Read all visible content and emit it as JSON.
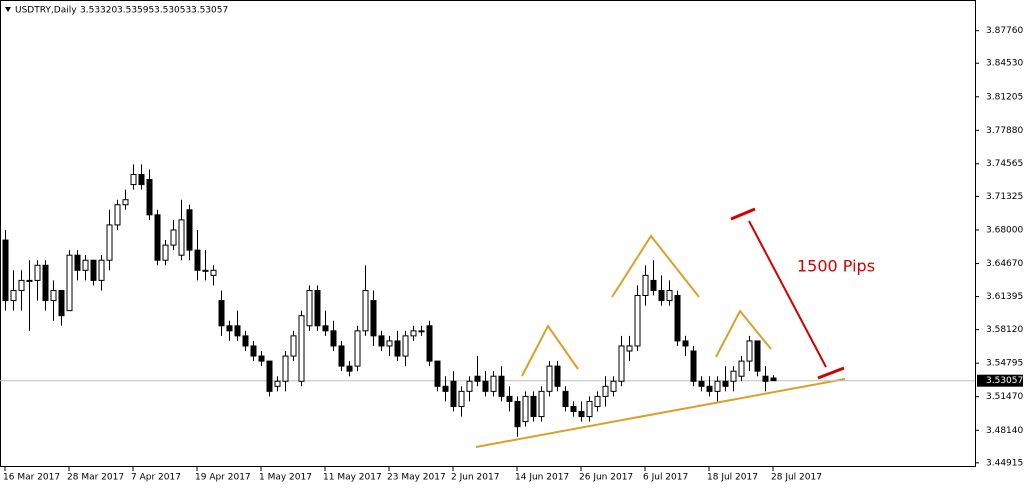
{
  "chart_data": {
    "type": "candlestick",
    "title": "USDTRY,Daily",
    "info": [
      "3.53320",
      "3.53595",
      "3.53053",
      "3.53057"
    ],
    "annotation": "1500 Pips",
    "categories": [
      "16 Mar 2017",
      null,
      null,
      null,
      null,
      null,
      null,
      null,
      "28 Mar 2017",
      null,
      null,
      null,
      null,
      null,
      null,
      null,
      "7 Apr 2017",
      null,
      null,
      null,
      null,
      null,
      null,
      null,
      "19 Apr 2017",
      null,
      null,
      null,
      null,
      null,
      null,
      null,
      "1 May 2017",
      null,
      null,
      null,
      null,
      null,
      null,
      null,
      "11 May 2017",
      null,
      null,
      null,
      null,
      null,
      null,
      null,
      "23 May 2017",
      null,
      null,
      null,
      null,
      null,
      null,
      null,
      "2 Jun 2017",
      null,
      null,
      null,
      null,
      null,
      null,
      null,
      "14 Jun 2017",
      null,
      null,
      null,
      null,
      null,
      null,
      null,
      "26 Jun 2017",
      null,
      null,
      null,
      null,
      null,
      null,
      null,
      "6 Jul 2017",
      null,
      null,
      null,
      null,
      null,
      null,
      null,
      "18 Jul 2017",
      null,
      null,
      null,
      null,
      null,
      null,
      null,
      "28 Jul 2017"
    ],
    "open": [
      3.67,
      3.61,
      3.62,
      3.63,
      3.63,
      3.645,
      3.61,
      3.62,
      3.6,
      3.655,
      3.64,
      3.65,
      3.63,
      3.65,
      3.685,
      3.705,
      3.725,
      3.735,
      3.73,
      3.695,
      3.65,
      3.665,
      3.655,
      3.7,
      3.66,
      3.64,
      3.635,
      3.61,
      3.585,
      3.585,
      3.575,
      3.565,
      3.555,
      3.55,
      3.525,
      3.53,
      3.555,
      3.53,
      3.585,
      3.62,
      3.585,
      3.58,
      3.565,
      3.545,
      3.545,
      3.58,
      3.61,
      3.575,
      3.565,
      3.57,
      3.555,
      3.575,
      3.58,
      3.585,
      3.55,
      3.525,
      3.53,
      3.505,
      3.52,
      3.535,
      3.53,
      3.52,
      3.535,
      3.515,
      3.51,
      3.49,
      3.515,
      3.495,
      3.52,
      3.545,
      3.52,
      3.505,
      3.5,
      3.495,
      3.505,
      3.515,
      3.52,
      3.53,
      3.56,
      3.565,
      3.615,
      3.63,
      3.62,
      3.61,
      3.615,
      3.57,
      3.56,
      3.53,
      3.525,
      3.52,
      3.53,
      3.53,
      3.535,
      3.55,
      3.57,
      3.535,
      3.5332
    ],
    "high": [
      3.68,
      3.64,
      3.64,
      3.65,
      3.65,
      3.65,
      3.63,
      3.62,
      3.66,
      3.66,
      3.655,
      3.65,
      3.655,
      3.7,
      3.71,
      3.72,
      3.745,
      3.745,
      3.74,
      3.7,
      3.67,
      3.69,
      3.71,
      3.705,
      3.68,
      3.66,
      3.645,
      3.62,
      3.59,
      3.6,
      3.58,
      3.57,
      3.56,
      3.55,
      3.535,
      3.56,
      3.58,
      3.6,
      3.625,
      3.625,
      3.6,
      3.59,
      3.57,
      3.55,
      3.585,
      3.645,
      3.62,
      3.58,
      3.575,
      3.58,
      3.58,
      3.585,
      3.585,
      3.59,
      3.55,
      3.535,
      3.54,
      3.525,
      3.535,
      3.555,
      3.54,
      3.54,
      3.545,
      3.525,
      3.515,
      3.52,
      3.52,
      3.525,
      3.55,
      3.55,
      3.525,
      3.51,
      3.51,
      3.515,
      3.52,
      3.535,
      3.535,
      3.575,
      3.575,
      3.625,
      3.645,
      3.65,
      3.635,
      3.63,
      3.62,
      3.575,
      3.565,
      3.535,
      3.535,
      3.535,
      3.545,
      3.545,
      3.555,
      3.575,
      3.57,
      3.545,
      3.53595
    ],
    "low": [
      3.6,
      3.6,
      3.6,
      3.58,
      3.61,
      3.6,
      3.59,
      3.585,
      3.6,
      3.63,
      3.63,
      3.625,
      3.62,
      3.64,
      3.68,
      3.7,
      3.72,
      3.72,
      3.69,
      3.645,
      3.645,
      3.66,
      3.65,
      3.65,
      3.63,
      3.63,
      3.625,
      3.575,
      3.57,
      3.57,
      3.56,
      3.55,
      3.545,
      3.515,
      3.52,
      3.52,
      3.55,
      3.525,
      3.58,
      3.58,
      3.575,
      3.56,
      3.54,
      3.535,
      3.54,
      3.575,
      3.565,
      3.56,
      3.555,
      3.55,
      3.545,
      3.57,
      3.575,
      3.545,
      3.52,
      3.51,
      3.5,
      3.495,
      3.51,
      3.525,
      3.515,
      3.515,
      3.51,
      3.5,
      3.475,
      3.485,
      3.49,
      3.49,
      3.515,
      3.52,
      3.5,
      3.495,
      3.49,
      3.49,
      3.5,
      3.505,
      3.515,
      3.525,
      3.55,
      3.56,
      3.605,
      3.615,
      3.605,
      3.605,
      3.565,
      3.555,
      3.525,
      3.52,
      3.515,
      3.51,
      3.52,
      3.52,
      3.53,
      3.54,
      3.535,
      3.52,
      3.53053
    ],
    "close": [
      3.61,
      3.62,
      3.63,
      3.63,
      3.645,
      3.61,
      3.62,
      3.595,
      3.655,
      3.64,
      3.65,
      3.63,
      3.65,
      3.685,
      3.705,
      3.71,
      3.735,
      3.725,
      3.695,
      3.65,
      3.665,
      3.68,
      3.69,
      3.66,
      3.64,
      3.64,
      3.64,
      3.585,
      3.58,
      3.575,
      3.565,
      3.555,
      3.55,
      3.52,
      3.53,
      3.555,
      3.575,
      3.595,
      3.62,
      3.585,
      3.58,
      3.565,
      3.545,
      3.54,
      3.58,
      3.62,
      3.575,
      3.565,
      3.57,
      3.555,
      3.575,
      3.58,
      3.58,
      3.55,
      3.525,
      3.52,
      3.505,
      3.52,
      3.53,
      3.53,
      3.52,
      3.535,
      3.515,
      3.51,
      3.485,
      3.515,
      3.495,
      3.52,
      3.545,
      3.525,
      3.505,
      3.5,
      3.495,
      3.51,
      3.515,
      3.525,
      3.53,
      3.565,
      3.565,
      3.615,
      3.635,
      3.62,
      3.61,
      3.62,
      3.57,
      3.565,
      3.53,
      3.525,
      3.52,
      3.53,
      3.525,
      3.54,
      3.55,
      3.57,
      3.54,
      3.53,
      3.53057
    ],
    "current_price": {
      "value": 3.53057,
      "label": "3.53057"
    },
    "ylim": [
      3.445,
      3.907
    ],
    "yticks": [
      {
        "value": 3.44915,
        "label": "3.44915"
      },
      {
        "value": 3.4814,
        "label": "3.48140"
      },
      {
        "value": 3.5147,
        "label": "3.51470"
      },
      {
        "value": 3.54795,
        "label": "3.54795"
      },
      {
        "value": 3.5812,
        "label": "3.58120"
      },
      {
        "value": 3.61395,
        "label": "3.61395"
      },
      {
        "value": 3.6467,
        "label": "3.64670"
      },
      {
        "value": 3.68,
        "label": "3.68000"
      },
      {
        "value": 3.71325,
        "label": "3.71325"
      },
      {
        "value": 3.74565,
        "label": "3.74565"
      },
      {
        "value": 3.7788,
        "label": "3.77880"
      },
      {
        "value": 3.81205,
        "label": "3.81205"
      },
      {
        "value": 3.8453,
        "label": "3.84530"
      },
      {
        "value": 3.8776,
        "label": "3.87760"
      }
    ],
    "bull_color": "#ffffff",
    "bear_color": "#000000",
    "grid": false
  }
}
